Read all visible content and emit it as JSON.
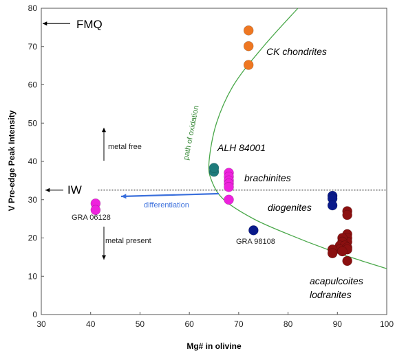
{
  "chart_data": {
    "type": "scatter",
    "xlabel": "Mg# in olivine",
    "ylabel": "V Pre-edge Peak Intensity",
    "xlim": [
      30,
      100
    ],
    "ylim": [
      0,
      80
    ],
    "xticks": [
      30,
      40,
      50,
      60,
      70,
      80,
      90,
      100
    ],
    "yticks": [
      0,
      10,
      20,
      30,
      40,
      50,
      60,
      70,
      80
    ],
    "grid": false,
    "colors": {
      "ck": "#ee7722",
      "alh": "#1e7b7b",
      "brachinite": "#ee22dd",
      "gra06128": "#ee22dd",
      "diogenite": "#0a1a8a",
      "acapulcoite": "#8b1010",
      "curve": "#4aa84a",
      "arrow": "#3a6fdc",
      "reference": "#333333"
    },
    "series": [
      {
        "key": "ck",
        "x": [
          72,
          72,
          72
        ],
        "y": [
          74.2,
          70.1,
          65.2
        ]
      },
      {
        "key": "alh",
        "x": [
          65,
          65
        ],
        "y": [
          37.3,
          38.3
        ]
      },
      {
        "key": "brachinite",
        "x": [
          68,
          68,
          68,
          68,
          68,
          68
        ],
        "y": [
          37,
          36,
          35,
          34.2,
          33.3,
          30
        ]
      },
      {
        "key": "gra06128",
        "x": [
          41,
          41
        ],
        "y": [
          29,
          27.3
        ]
      },
      {
        "key": "gra98108",
        "x": [
          73
        ],
        "y": [
          22
        ]
      },
      {
        "key": "diogenite",
        "x": [
          89,
          89,
          89
        ],
        "y": [
          31,
          30.3,
          28.5
        ]
      },
      {
        "key": "acapulcoite",
        "x": [
          92,
          92,
          92,
          92,
          92,
          91,
          91,
          90.5,
          91.5,
          90.5,
          92,
          89,
          89,
          92,
          91,
          92
        ],
        "y": [
          27,
          26,
          21,
          20,
          19,
          20,
          19,
          18,
          18,
          17,
          17.5,
          17,
          16,
          17,
          16.5,
          14
        ]
      }
    ],
    "curve": {
      "label": "path of oxidation",
      "points": [
        [
          82,
          80
        ],
        [
          75,
          70
        ],
        [
          69,
          60
        ],
        [
          65.5,
          50
        ],
        [
          64,
          40
        ],
        [
          64.5,
          35
        ],
        [
          67,
          30
        ],
        [
          73,
          25
        ],
        [
          80,
          21
        ],
        [
          88,
          17
        ],
        [
          95,
          14
        ],
        [
          100,
          12
        ]
      ]
    },
    "reference_line": {
      "label": "IW",
      "y": 32.5,
      "x_start": 30.5,
      "x_end": 100
    },
    "fmq": {
      "label": "FMQ",
      "y": 76
    },
    "annotations": {
      "ck_chondrites": "CK chondrites",
      "alh84001": "ALH 84001",
      "brachinites": "brachinites",
      "diogenites": "diogenites",
      "acapulcoites": "acapulcoites",
      "lodranites": "lodranites",
      "gra06128": "GRA 06128",
      "gra98108": "GRA 98108",
      "differentiation": "differentiation",
      "metal_free": "metal free",
      "metal_present": "metal present"
    }
  }
}
